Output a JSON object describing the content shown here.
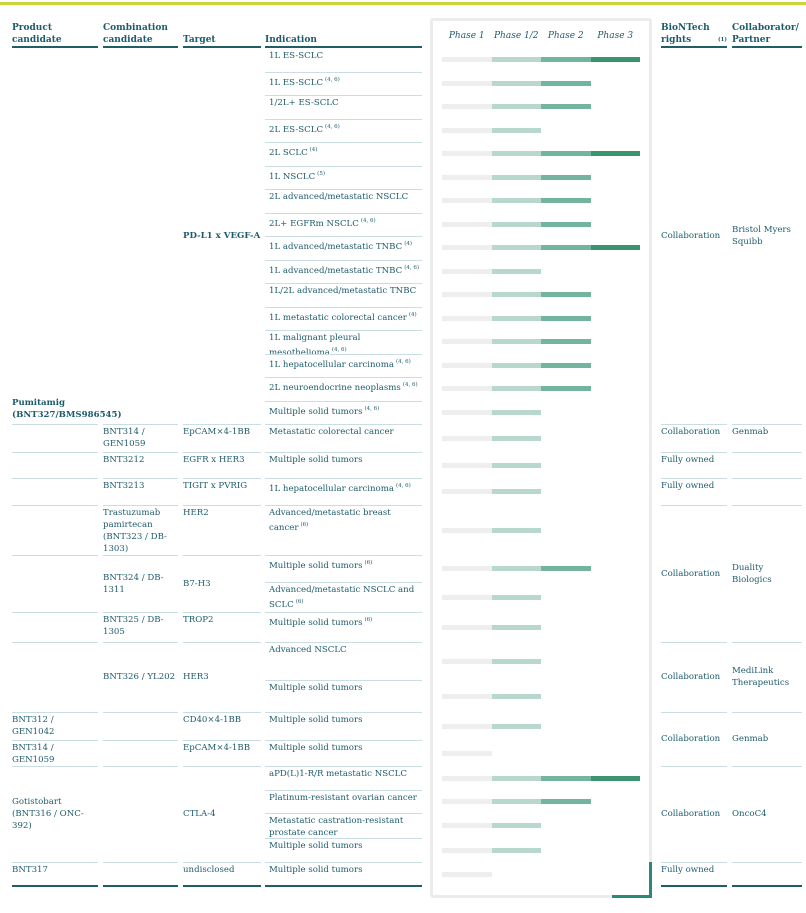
{
  "header": {
    "product": "Product candidate",
    "combination": "Combination candidate",
    "target": "Target",
    "indication": "Indication",
    "phases": [
      "Phase 1",
      "Phase 1/2",
      "Phase 2",
      "Phase 3"
    ],
    "rights": "BioNTech rights",
    "rights_note": "(1)",
    "partner": "Collaborator/ Partner"
  },
  "phase_colors": [
    "#eeeeee",
    "#b8d8cf",
    "#72b49c",
    "#3a9470"
  ],
  "rows": [
    {
      "product": "Pumitamig (BNT327/BMS986545)",
      "target": "PD-L1 x VEGF-A",
      "indication": "1L ES-SCLC",
      "phase": "Phase 3",
      "rights": "Collaboration",
      "partner": "Bristol Myers Squibb"
    },
    {
      "indication": "1L ES-SCLC",
      "note": "(4, 6)",
      "phase": "Phase 2"
    },
    {
      "indication": "1/2L+ ES-SCLC",
      "phase": "Phase 2"
    },
    {
      "indication": "2L ES-SCLC",
      "note": "(4, 6)",
      "phase": "Phase 1/2"
    },
    {
      "indication": "2L SCLC",
      "note": "(4)",
      "phase": "Phase 3"
    },
    {
      "indication": "1L NSCLC",
      "note": "(5)",
      "phase": "Phase 2"
    },
    {
      "indication": "2L advanced/metastatic NSCLC",
      "phase": "Phase 2"
    },
    {
      "indication": "2L+ EGFRm NSCLC",
      "note": "(4, 6)",
      "phase": "Phase 2"
    },
    {
      "indication": "1L advanced/metastatic TNBC",
      "note": "(4)",
      "phase": "Phase 3"
    },
    {
      "indication": "1L advanced/metastatic TNBC",
      "note": "(4, 6)",
      "phase": "Phase 1/2"
    },
    {
      "indication": "1L/2L advanced/metastatic TNBC",
      "phase": "Phase 2"
    },
    {
      "indication": "1L metastatic colorectal cancer",
      "note": "(4)",
      "phase": "Phase 2"
    },
    {
      "indication": "1L malignant pleural mesothelioma",
      "note": "(4, 6)",
      "phase": "Phase 2"
    },
    {
      "indication": "1L hepatocellular carcinoma",
      "note": "(4, 6)",
      "phase": "Phase 2"
    },
    {
      "indication": "2L neuroendocrine neoplasms",
      "note": "(4, 6)",
      "phase": "Phase 2"
    },
    {
      "indication": "Multiple solid tumors",
      "note": "(4, 6)",
      "phase": "Phase 1/2"
    },
    {
      "combination": "BNT314 / GEN1059",
      "target": "EpCAM×4-1BB",
      "indication": "Metastatic colorectal cancer",
      "phase": "Phase 1/2",
      "rights": "Collaboration",
      "partner": "Genmab"
    },
    {
      "combination": "BNT3212",
      "target": "EGFR x HER3",
      "indication": "Multiple solid tumors",
      "phase": "Phase 1/2",
      "rights": "Fully owned"
    },
    {
      "combination": "BNT3213",
      "target": "TIGIT x PVRIG",
      "indication": "1L hepatocellular carcinoma",
      "note": "(4, 6)",
      "phase": "Phase 1/2",
      "rights": "Fully owned"
    },
    {
      "combination": "Trastuzumab pamirtecan (BNT323 / DB-1303)",
      "target": "HER2",
      "indication": "Advanced/metastatic breast cancer",
      "note": "(6)",
      "phase": "Phase 1/2",
      "rights": "Collaboration",
      "partner": "Duality Biologics"
    },
    {
      "combination": "BNT324 / DB-1311",
      "target": "B7-H3",
      "indication": "Multiple solid tumors",
      "note": "(6)",
      "phase": "Phase 2"
    },
    {
      "indication": "Advanced/metastatic NSCLC and SCLC",
      "note": "(6)",
      "phase": "Phase 1/2"
    },
    {
      "combination": "BNT325 / DB-1305",
      "target": "TROP2",
      "indication": "Multiple solid tumors",
      "note": "(6)",
      "phase": "Phase 1/2"
    },
    {
      "combination": "BNT326 / YL202",
      "target": "HER3",
      "indication": "Advanced NSCLC",
      "phase": "Phase 1/2",
      "rights": "Collaboration",
      "partner": "MediLink Therapeutics"
    },
    {
      "indication": "Multiple solid tumors",
      "phase": "Phase 1/2"
    },
    {
      "product": "BNT312 / GEN1042",
      "target": "CD40×4-1BB",
      "indication": "Multiple solid tumors",
      "phase": "Phase 1/2",
      "rights": "Collaboration",
      "partner": "Genmab"
    },
    {
      "product": "BNT314 / GEN1059",
      "target": "EpCAM×4-1BB",
      "indication": "Multiple solid tumors",
      "phase": "Phase 1"
    },
    {
      "product": "Gotistobart (BNT316 / ONC-392)",
      "target": "CTLA-4",
      "indication": "aPD(L)1-R/R metastatic NSCLC",
      "phase": "Phase 3",
      "rights": "Collaboration",
      "partner": "OncoC4"
    },
    {
      "indication": "Platinum-resistant ovarian cancer",
      "phase": "Phase 2"
    },
    {
      "indication": "Metastatic castration-resistant prostate cancer",
      "phase": "Phase 1/2"
    },
    {
      "indication": "Multiple solid tumors",
      "phase": "Phase 1/2"
    },
    {
      "product": "BNT317",
      "target": "undisclosed",
      "indication": "Multiple solid tumors",
      "phase": "Phase 1",
      "rights": "Fully owned"
    }
  ]
}
